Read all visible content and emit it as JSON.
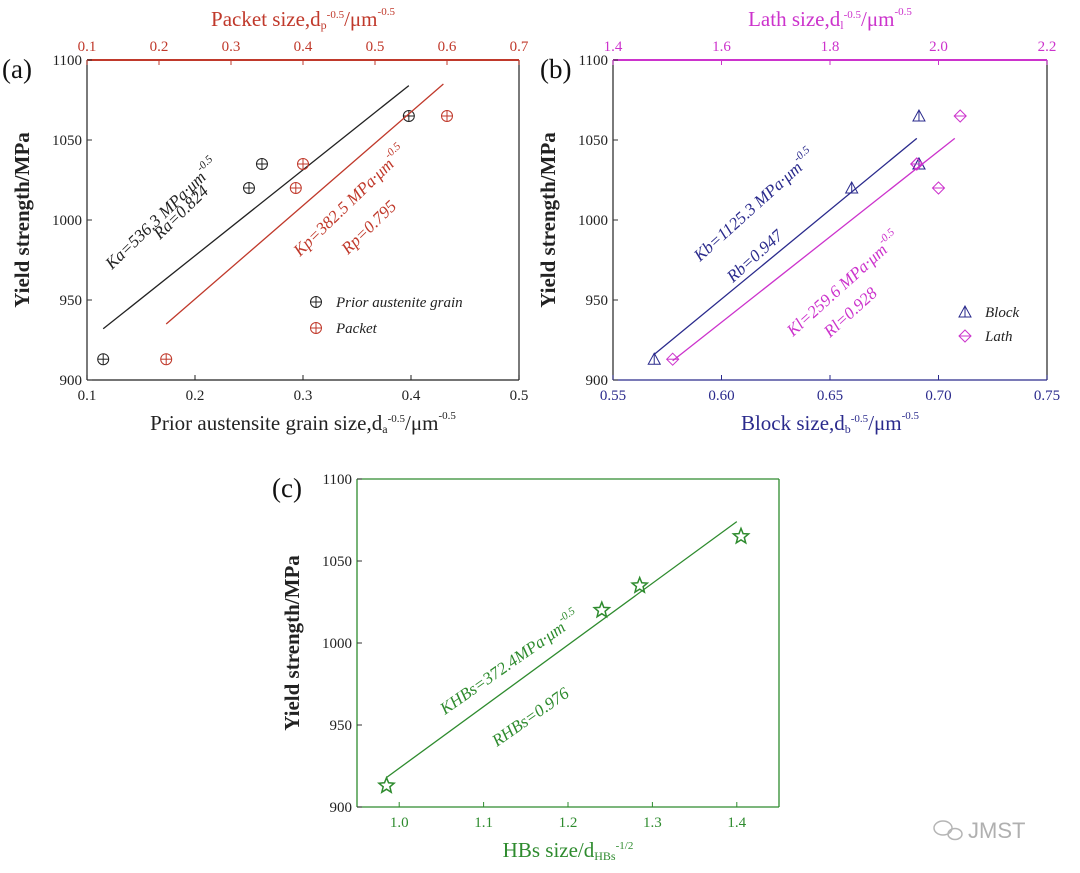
{
  "colors": {
    "black": "#222222",
    "red": "#c0392b",
    "magenta": "#cc33cc",
    "navy": "#2a2a8c",
    "green": "#2e8b2e",
    "gray": "#888888"
  },
  "watermark": {
    "icon": "wechat-icon",
    "text": "JMST"
  },
  "chart_data": [
    {
      "panel": "(a)",
      "type": "scatter",
      "ylabel": "Yield strength/MPa",
      "ylim": [
        900,
        1100
      ],
      "yticks": [
        "900",
        "950",
        "1000",
        "1050",
        "1100"
      ],
      "x_bottom": {
        "label_main": "Prior austensite grain size,d",
        "label_sub": "a",
        "label_sup1": "-0.5",
        "label_mid": "/μm",
        "label_sup2": "-0.5",
        "range": [
          0.1,
          0.5
        ],
        "ticks": [
          "0.1",
          "0.2",
          "0.3",
          "0.4",
          "0.5"
        ]
      },
      "x_top": {
        "label_main": "Packet size,d",
        "label_sub": "p",
        "label_sup1": "-0.5",
        "label_mid": "/μm",
        "label_sup2": "-0.5",
        "range": [
          0.1,
          0.7
        ],
        "ticks": [
          "0.1",
          "0.2",
          "0.3",
          "0.4",
          "0.5",
          "0.6",
          "0.7"
        ]
      },
      "series": [
        {
          "name": "Prior austenite grain",
          "axis": "bottom",
          "marker": "circle-plus",
          "color": "black",
          "x": [
            0.115,
            0.25,
            0.262,
            0.398
          ],
          "y": [
            913,
            1020,
            1035,
            1065
          ],
          "fit": {
            "x": [
              0.115,
              0.398
            ],
            "y": [
              932,
              1084
            ]
          },
          "k_label": "Ka=536.3 MPa·μm-0.5",
          "r_label": "Ra=0.824"
        },
        {
          "name": "Packet",
          "axis": "top",
          "marker": "circle-plus",
          "color": "red",
          "x": [
            0.21,
            0.39,
            0.4,
            0.6
          ],
          "y": [
            913,
            1020,
            1035,
            1065
          ],
          "fit": {
            "x": [
              0.21,
              0.595
            ],
            "y": [
              935,
              1085
            ]
          },
          "k_label": "Kp=382.5 MPa·μm-0.5",
          "r_label": "Rp=0.795"
        }
      ],
      "legend": [
        "Prior austenite grain",
        "Packet"
      ],
      "legend_position": "bottom-right"
    },
    {
      "panel": "(b)",
      "type": "scatter",
      "ylabel": "Yield strength/MPa",
      "ylim": [
        900,
        1100
      ],
      "yticks": [
        "900",
        "950",
        "1000",
        "1050",
        "1100"
      ],
      "x_bottom": {
        "label_main": "Block size,d",
        "label_sub": "b",
        "label_sup1": "-0.5",
        "label_mid": "/μm",
        "label_sup2": "-0.5",
        "range": [
          0.55,
          0.75
        ],
        "ticks": [
          "0.55",
          "0.60",
          "0.65",
          "0.70",
          "0.75"
        ]
      },
      "x_top": {
        "label_main": "Lath size,d",
        "label_sub": "l",
        "label_sup1": "-0.5",
        "label_mid": "/μm",
        "label_sup2": "-0.5",
        "range": [
          1.4,
          2.2
        ],
        "ticks": [
          "1.4",
          "1.6",
          "1.8",
          "2.0",
          "2.2"
        ]
      },
      "series": [
        {
          "name": "Block",
          "axis": "bottom",
          "marker": "triangle",
          "color": "navy",
          "x": [
            0.569,
            0.66,
            0.691,
            0.691,
            0.691
          ],
          "y": [
            913,
            1020,
            1035,
            1035,
            1065
          ],
          "fit": {
            "x": [
              0.569,
              0.69
            ],
            "y": [
              916,
              1051
            ]
          },
          "k_label": "Kb=1125.3 MPa·μm-0.5",
          "r_label": "Rb=0.947"
        },
        {
          "name": "Lath",
          "axis": "top",
          "marker": "diamond",
          "color": "magenta",
          "x": [
            1.51,
            1.96,
            1.96,
            2.0,
            2.04
          ],
          "y": [
            913,
            1035,
            1035,
            1020,
            1065
          ],
          "fit": {
            "x": [
              1.51,
              2.03
            ],
            "y": [
              912,
              1051
            ]
          },
          "k_label": "Kl=259.6 MPa·μm-0.5",
          "r_label": "Rl=0.928"
        }
      ],
      "legend": [
        "Block",
        "Lath"
      ],
      "legend_position": "bottom-right"
    },
    {
      "panel": "(c)",
      "type": "scatter",
      "ylabel": "Yield strength/MPa",
      "ylim": [
        900,
        1100
      ],
      "yticks": [
        "900",
        "950",
        "1000",
        "1050",
        "1100"
      ],
      "x_bottom": {
        "label_main": "HBs size/d",
        "label_sub": "HBs",
        "label_sup1": "-1/2",
        "range": [
          0.95,
          1.45
        ],
        "ticks": [
          "1.0",
          "1.1",
          "1.2",
          "1.3",
          "1.4"
        ]
      },
      "series": [
        {
          "name": "HBs",
          "axis": "bottom",
          "marker": "star",
          "color": "green",
          "x": [
            0.985,
            1.24,
            1.285,
            1.405
          ],
          "y": [
            913,
            1020,
            1035,
            1065
          ],
          "fit": {
            "x": [
              0.985,
              1.4
            ],
            "y": [
              918,
              1074
            ]
          },
          "k_label": "KHBs=372.4MPa·μm-0.5",
          "r_label": "RHBs=0.976"
        }
      ]
    }
  ]
}
